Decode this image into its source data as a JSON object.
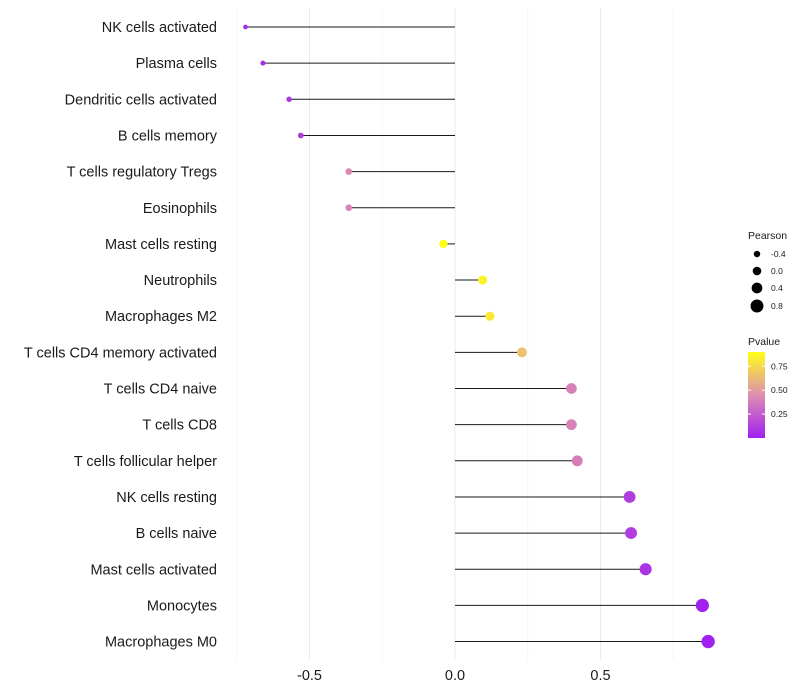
{
  "chart_data": {
    "type": "lollipop",
    "title": "",
    "xlabel": "",
    "ylabel": "",
    "xlim": [
      -0.75,
      0.93
    ],
    "x_ticks": [
      -0.5,
      0.0,
      0.5
    ],
    "x_tick_labels": [
      "-0.5",
      "0.0",
      "0.5"
    ],
    "grid": true,
    "categories": [
      "NK cells activated",
      "Plasma cells",
      "Dendritic cells activated",
      "B cells memory",
      "T cells regulatory  Tregs",
      "Eosinophils",
      "Mast cells resting",
      "Neutrophils",
      "Macrophages M2",
      "T cells CD4 memory activated",
      "T cells CD4 naive",
      "T cells CD8",
      "T cells follicular helper",
      "NK cells resting",
      "B cells naive",
      "Mast cells activated",
      "Monocytes",
      "Macrophages M0"
    ],
    "pearson": [
      -0.72,
      -0.66,
      -0.57,
      -0.53,
      -0.365,
      -0.365,
      -0.04,
      0.095,
      0.12,
      0.23,
      0.4,
      0.4,
      0.42,
      0.6,
      0.605,
      0.655,
      0.85,
      0.87
    ],
    "pvalue": [
      0.04,
      0.05,
      0.1,
      0.12,
      0.42,
      0.42,
      0.9,
      0.85,
      0.82,
      0.65,
      0.4,
      0.4,
      0.38,
      0.12,
      0.12,
      0.08,
      0.01,
      0.005
    ],
    "legend_size": {
      "title": "Pearson",
      "labels": [
        "-0.4",
        "0.0",
        "0.4",
        "0.8"
      ],
      "values": [
        -0.4,
        0.0,
        0.4,
        0.8
      ]
    },
    "legend_color": {
      "title": "Pvalue",
      "labels": [
        "0.75",
        "0.50",
        "0.25"
      ],
      "values": [
        0.75,
        0.5,
        0.25
      ],
      "range": [
        0.0,
        0.9
      ],
      "low_color": "#a020f0",
      "mid_color": "#de8eb0",
      "high_color": "#ffff1a"
    },
    "legend_position": "right"
  },
  "colors": {
    "segment": "#1a1a1a",
    "grid_major": "#ebebeb",
    "grid_minor": "#f5f5f5"
  }
}
